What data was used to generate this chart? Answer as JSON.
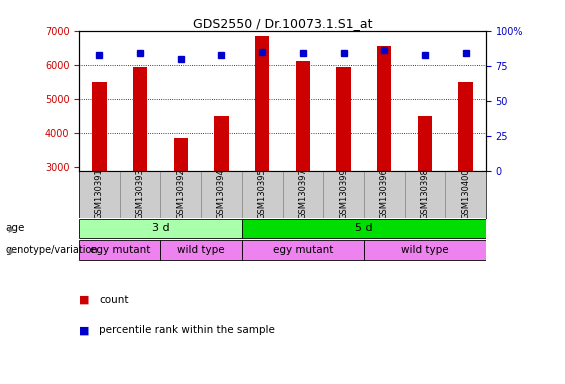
{
  "title": "GDS2550 / Dr.10073.1.S1_at",
  "samples": [
    "GSM130391",
    "GSM130393",
    "GSM130392",
    "GSM130394",
    "GSM130395",
    "GSM130397",
    "GSM130399",
    "GSM130396",
    "GSM130398",
    "GSM130400"
  ],
  "counts": [
    5500,
    5950,
    3850,
    4500,
    6850,
    6100,
    5950,
    6550,
    4500,
    5500
  ],
  "percentile_ranks": [
    83,
    84,
    80,
    83,
    85,
    84,
    84,
    86,
    83,
    84
  ],
  "ylim_left": [
    2900,
    7000
  ],
  "ylim_right": [
    0,
    100
  ],
  "yticks_left": [
    3000,
    4000,
    5000,
    6000,
    7000
  ],
  "yticks_right": [
    0,
    25,
    50,
    75,
    100
  ],
  "bar_color": "#cc0000",
  "dot_color": "#0000cc",
  "age_labels": [
    {
      "label": "3 d",
      "start": 0,
      "end": 4,
      "color": "#aaffaa"
    },
    {
      "label": "5 d",
      "start": 4,
      "end": 10,
      "color": "#00dd00"
    }
  ],
  "genotype_labels": [
    {
      "label": "egy mutant",
      "start": 0,
      "end": 2,
      "color": "#ee82ee"
    },
    {
      "label": "wild type",
      "start": 2,
      "end": 4,
      "color": "#ee82ee"
    },
    {
      "label": "egy mutant",
      "start": 4,
      "end": 7,
      "color": "#ee82ee"
    },
    {
      "label": "wild type",
      "start": 7,
      "end": 10,
      "color": "#ee82ee"
    }
  ],
  "age_row_label": "age",
  "genotype_row_label": "genotype/variation",
  "legend_count_label": "count",
  "legend_pct_label": "percentile rank within the sample",
  "bar_color_hex": "#cc0000",
  "dot_color_hex": "#0000cc",
  "sample_bg_color": "#cccccc",
  "sample_border_color": "#888888"
}
